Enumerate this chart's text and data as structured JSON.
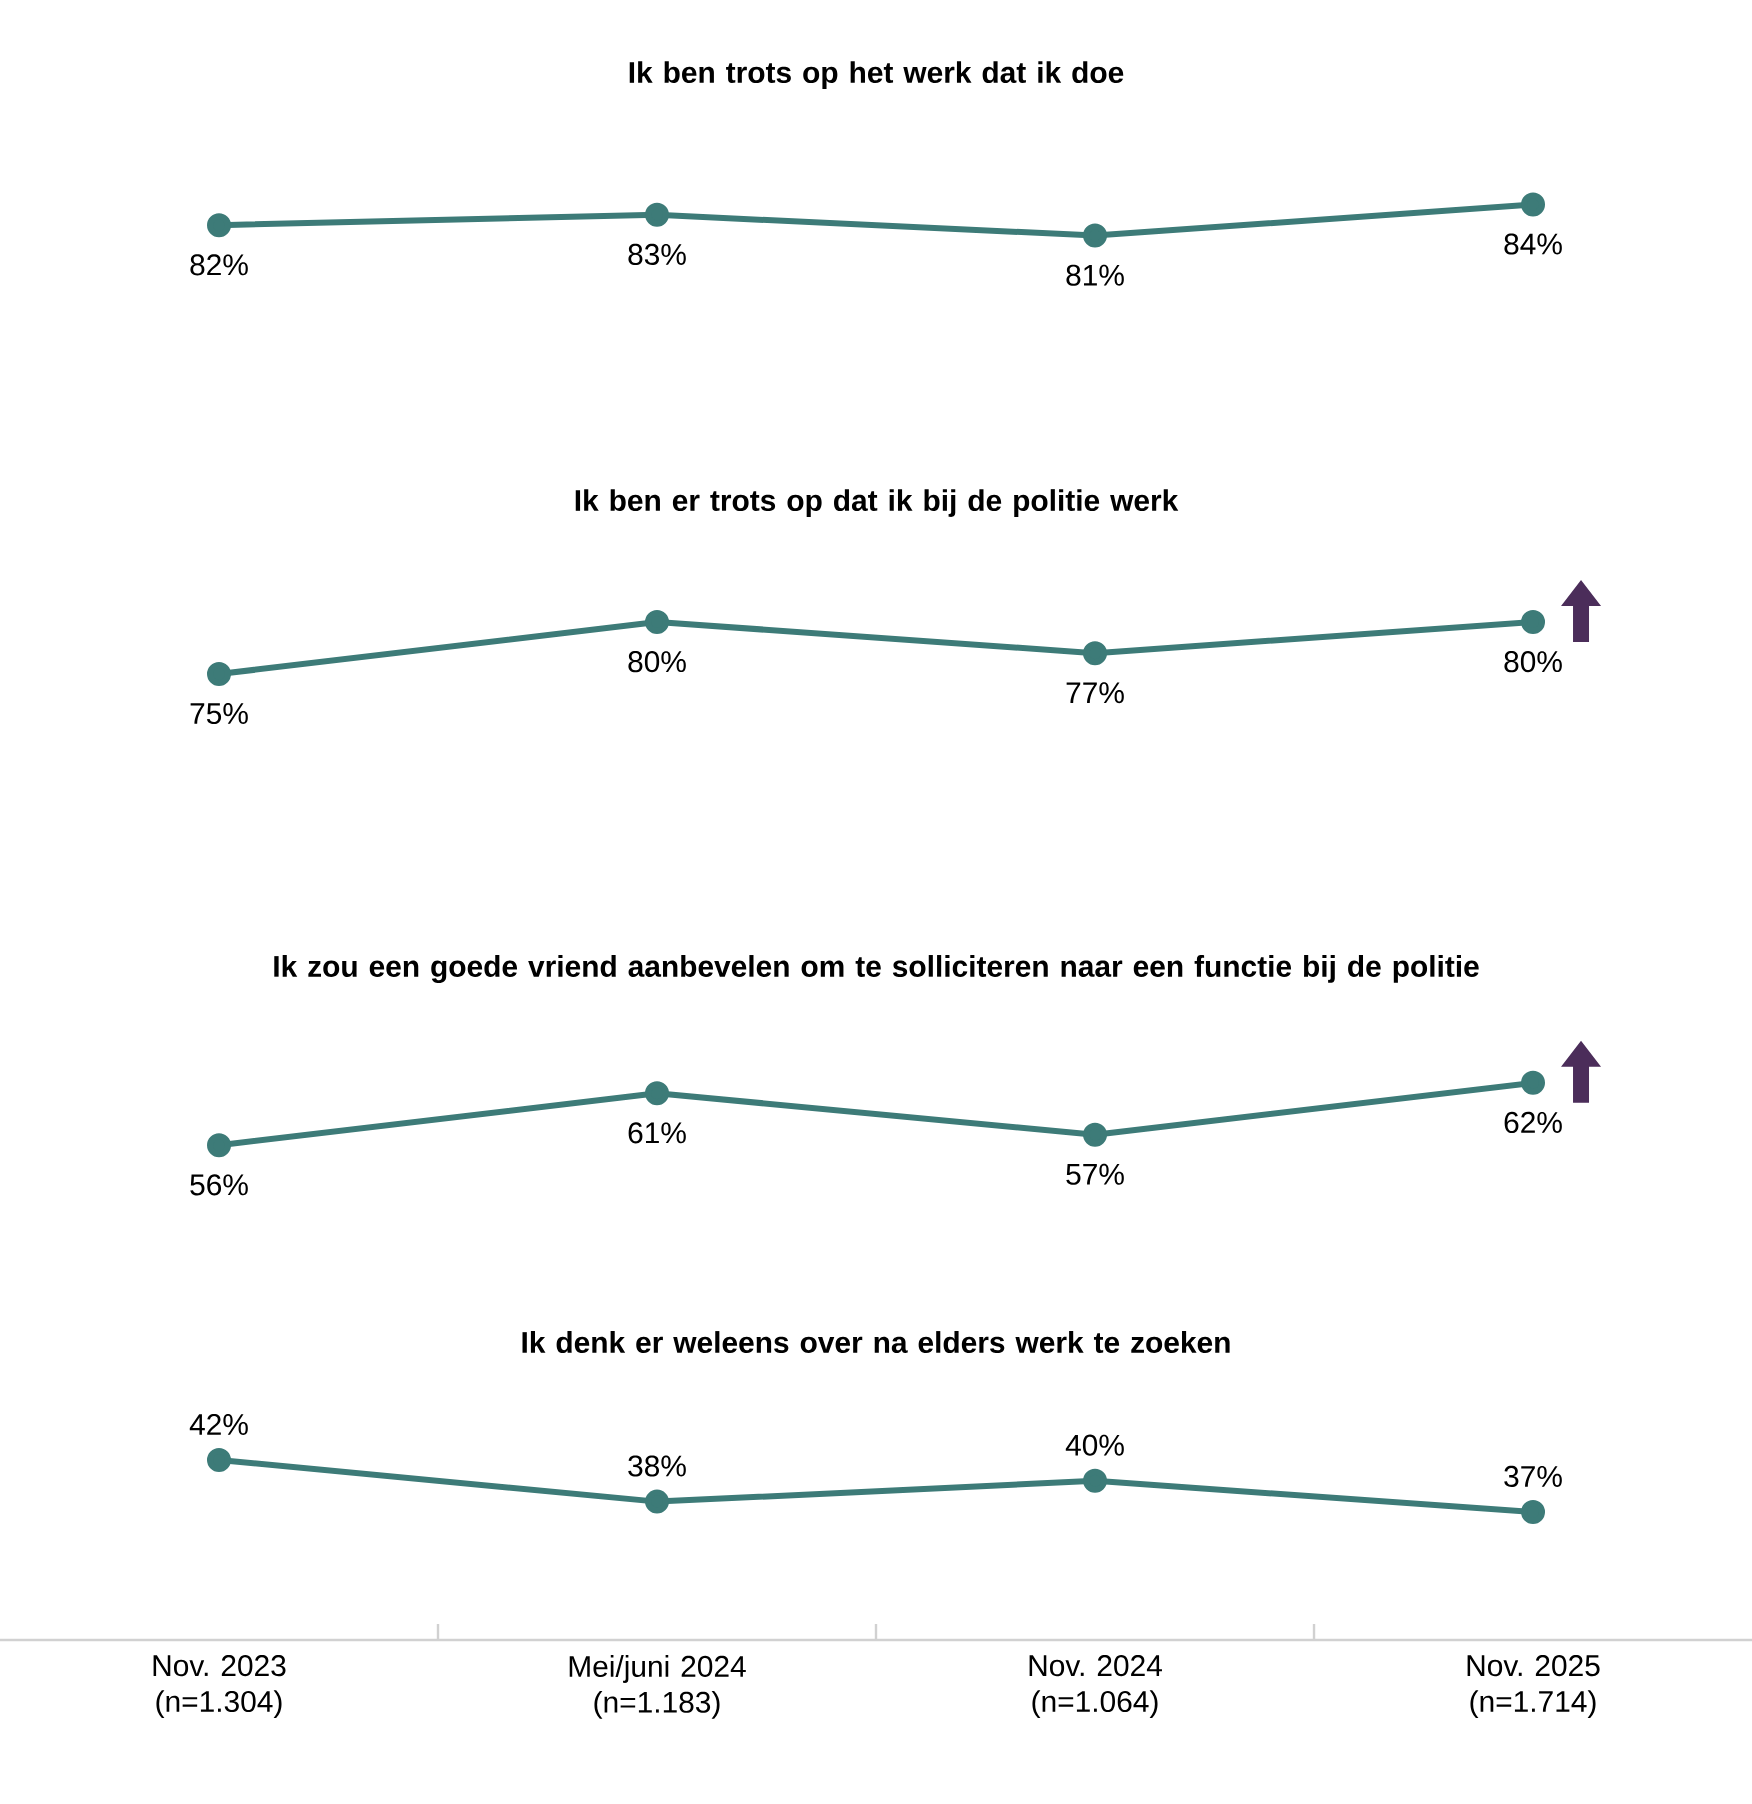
{
  "chart_data": [
    {
      "type": "line",
      "title": "Ik ben trots op het werk dat ik doe",
      "values": [
        82,
        83,
        81,
        84
      ],
      "value_labels": [
        "82%",
        "83%",
        "81%",
        "84%"
      ],
      "color": "#3d7b78",
      "marker": "circle",
      "tick_labels": false
    },
    {
      "type": "line",
      "title": "Ik ben er trots op dat ik bij de politie werk",
      "values": [
        75,
        80,
        77,
        80
      ],
      "value_labels": [
        "75%",
        "80%",
        "77%",
        "80%"
      ],
      "color": "#3d7b78",
      "marker": "circle",
      "tick_labels": false
    },
    {
      "type": "line",
      "title": "Ik zou een goede vriend aanbevelen om te solliciteren naar een functie bij de politie",
      "values": [
        56,
        61,
        57,
        62
      ],
      "value_labels": [
        "56%",
        "61%",
        "57%",
        "62%"
      ],
      "color": "#3d7b78",
      "marker": "circle",
      "tick_labels": false
    },
    {
      "type": "line",
      "title": "Ik denk er weleens over na elders werk te zoeken",
      "categories": [
        "Nov. 2023 (n=1.304)",
        "Mei/juni 2024 (n=1.183)",
        "Nov. 2024 (n=1.064)",
        "Nov. 2025 (n=1.714)"
      ],
      "values": [
        42,
        38,
        40,
        37
      ],
      "value_labels": [
        "42%",
        "38%",
        "40%",
        "37%"
      ],
      "color": "#3d7b78",
      "marker": "circle",
      "tick_labels": "x"
    }
  ]
}
